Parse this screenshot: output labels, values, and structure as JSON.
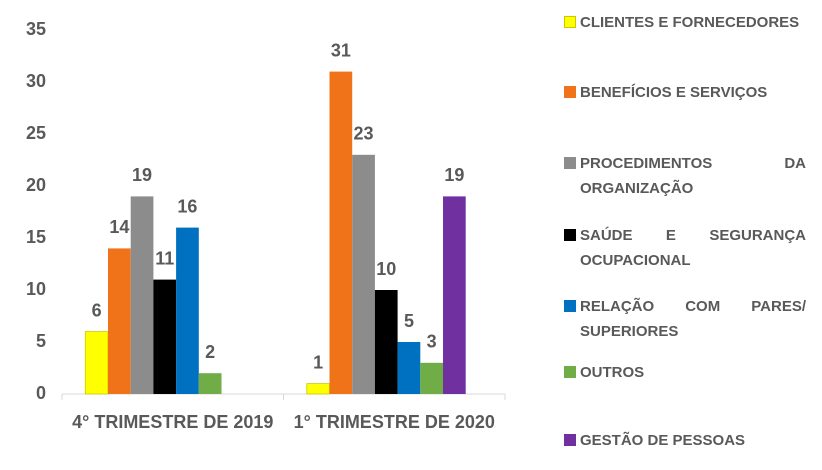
{
  "chart_data": {
    "type": "bar",
    "categories": [
      "4° TRIMESTRE DE 2019",
      "1° TRIMESTRE DE 2020"
    ],
    "series": [
      {
        "name": "CLIENTES E FORNECEDORES",
        "color": "#ffff00",
        "values": [
          6,
          1
        ]
      },
      {
        "name": "BENEFÍCIOS E SERVIÇOS",
        "color": "#f0731a",
        "values": [
          14,
          31
        ]
      },
      {
        "name": "PROCEDIMENTOS DA ORGANIZAÇÃO",
        "color": "#8c8c8c",
        "values": [
          19,
          23
        ]
      },
      {
        "name": "SAÚDE E SEGURANÇA OCUPACIONAL",
        "color": "#000000",
        "values": [
          11,
          10
        ]
      },
      {
        "name": "RELAÇÃO COM PARES/ SUPERIORES",
        "color": "#0070c0",
        "values": [
          16,
          5
        ]
      },
      {
        "name": "OUTROS",
        "color": "#70ad47",
        "values": [
          2,
          3
        ]
      },
      {
        "name": "GESTÃO DE PESSOAS",
        "color": "#7030a0",
        "values": [
          null,
          19
        ]
      }
    ],
    "ylim": [
      0,
      35
    ],
    "yticks": [
      0,
      5,
      10,
      15,
      20,
      25,
      30,
      35
    ],
    "grid": false,
    "legend": "right"
  }
}
